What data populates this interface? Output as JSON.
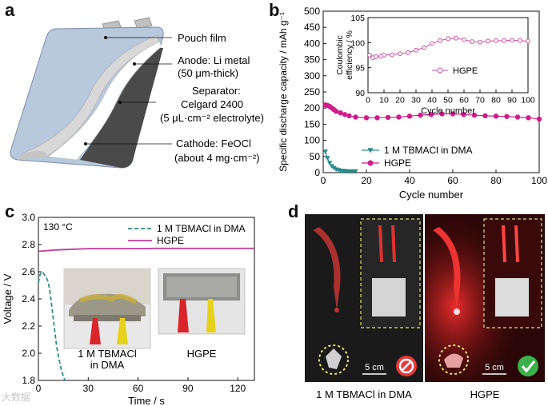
{
  "panels": {
    "a": {
      "label": "a",
      "callouts": {
        "pouch": "Pouch film",
        "anode_1": "Anode: Li metal",
        "anode_2": "(50 μm-thick)",
        "separator_1": "Separator:",
        "separator_2": "Celgard 2400",
        "separator_3": "(5 μL·cm⁻² electrolyte)",
        "cathode_1": "Cathode: FeOCl",
        "cathode_2": "(about 4 mg·cm⁻²)"
      },
      "colors": {
        "pouch": "#b8c8dd",
        "anode": "#d8d8d8",
        "separator": "#ffffff",
        "cathode": "#4a4a4a"
      }
    },
    "b": {
      "label": "b",
      "chart_data": {
        "type": "scatter",
        "xlabel": "Cycle number",
        "ylabel": "Specific discharge capacity / mAh g⁻¹",
        "xlim": [
          0,
          100
        ],
        "ylim": [
          0,
          500
        ],
        "xticks": [
          0,
          20,
          40,
          60,
          80,
          100
        ],
        "yticks": [
          0,
          50,
          100,
          150,
          200,
          250,
          300,
          350,
          400,
          450,
          500
        ],
        "legend_position": "bottom-left",
        "series": [
          {
            "name": "1 M TBMACl in DMA",
            "color": "#2a8a8a",
            "marker": "triangle-down",
            "x": [
              1,
              2,
              3,
              4,
              5,
              6,
              7,
              8,
              9,
              10,
              11,
              12,
              13,
              14,
              15
            ],
            "y": [
              65,
              45,
              30,
              20,
              14,
              10,
              8,
              6,
              5,
              5,
              4,
              4,
              4,
              4,
              4
            ]
          },
          {
            "name": "HGPE",
            "color": "#d01c8b",
            "marker": "circle",
            "x": [
              1,
              2,
              3,
              4,
              5,
              6,
              8,
              10,
              12,
              15,
              20,
              25,
              30,
              35,
              40,
              45,
              50,
              55,
              60,
              65,
              70,
              75,
              80,
              85,
              90,
              95,
              100
            ],
            "y": [
              210,
              208,
              205,
              200,
              195,
              190,
              185,
              180,
              176,
              172,
              170,
              170,
              171,
              172,
              175,
              178,
              180,
              182,
              182,
              180,
              178,
              176,
              175,
              174,
              172,
              170,
              166
            ]
          }
        ],
        "inset": {
          "type": "scatter",
          "xlabel": "Cycle number",
          "ylabel_1": "Coulombic",
          "ylabel_2": "efficiency / %",
          "xlim": [
            0,
            100
          ],
          "ylim": [
            90,
            105
          ],
          "xticks": [
            0,
            10,
            20,
            30,
            40,
            50,
            60,
            70,
            80,
            90,
            100
          ],
          "yticks": [
            90,
            95,
            100,
            105
          ],
          "legend_position": "center-right",
          "series": [
            {
              "name": "HGPE",
              "color": "#d44ea0",
              "marker": "circle-open",
              "x": [
                1,
                3,
                5,
                8,
                10,
                15,
                20,
                25,
                30,
                35,
                40,
                45,
                50,
                55,
                60,
                65,
                70,
                75,
                80,
                85,
                90,
                95,
                100
              ],
              "y": [
                97.5,
                97,
                97.2,
                97.3,
                97.5,
                97.6,
                97.8,
                98,
                98.5,
                99,
                99.8,
                100.4,
                100.8,
                100.9,
                100.6,
                100.2,
                100.1,
                100.3,
                100.4,
                100.4,
                100.5,
                100.4,
                100.3
              ]
            }
          ]
        }
      }
    },
    "c": {
      "label": "c",
      "chart_data": {
        "type": "line",
        "xlabel": "Time / s",
        "ylabel": "Voltage / V",
        "xlim": [
          0,
          130
        ],
        "ylim": [
          1.8,
          3.0
        ],
        "xticks": [
          0,
          30,
          60,
          90,
          120
        ],
        "yticks": [
          1.8,
          2.0,
          2.2,
          2.4,
          2.6,
          2.8,
          3.0
        ],
        "annotation": "130 °C",
        "legend_position": "top-right",
        "series": [
          {
            "name": "1 M TBMACl in DMA",
            "color": "#2a8a8a",
            "dash": true,
            "x": [
              0,
              1,
              2,
              3,
              4,
              5,
              6,
              7,
              8,
              9,
              10,
              11,
              12,
              13,
              14,
              15,
              16
            ],
            "y": [
              2.52,
              2.58,
              2.6,
              2.59,
              2.57,
              2.55,
              2.52,
              2.45,
              2.35,
              2.25,
              2.15,
              2.05,
              1.98,
              1.92,
              1.87,
              1.83,
              1.8
            ]
          },
          {
            "name": "HGPE",
            "color": "#c0399a",
            "dash": false,
            "x": [
              0,
              10,
              20,
              30,
              40,
              50,
              60,
              70,
              80,
              90,
              100,
              110,
              120,
              130
            ],
            "y": [
              2.75,
              2.76,
              2.765,
              2.77,
              2.77,
              2.77,
              2.77,
              2.772,
              2.772,
              2.772,
              2.772,
              2.772,
              2.772,
              2.772
            ]
          }
        ]
      },
      "photo_captions": {
        "left_1": "1 M TBMACl",
        "left_2": "in DMA",
        "right": "HGPE"
      }
    },
    "d": {
      "label": "d",
      "scale_bar": "5 cm",
      "captions": {
        "left": "1 M TBMACl in DMA",
        "right": "HGPE"
      }
    }
  },
  "watermark": "大数据"
}
